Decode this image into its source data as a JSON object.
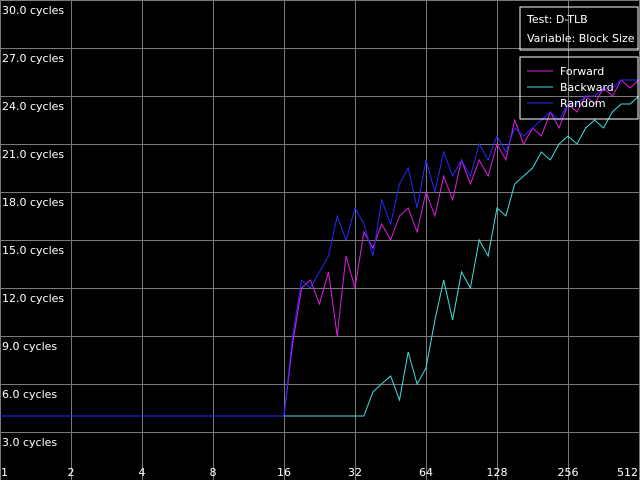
{
  "chart_data": {
    "type": "line",
    "title": "Test: D-TLB",
    "subtitle": "Variable: Block Size",
    "x": [
      1,
      2,
      4,
      8,
      16,
      17.4,
      19,
      20.7,
      22.6,
      24.7,
      26.9,
      29.3,
      32,
      34.9,
      38.1,
      41.5,
      45.3,
      49.4,
      53.8,
      58.7,
      64,
      69.8,
      76.1,
      83,
      90.5,
      98.7,
      107.6,
      117.4,
      128,
      139.6,
      152.2,
      166,
      181,
      197.4,
      215.3,
      234.8,
      256,
      279.2,
      304.4,
      332,
      362,
      394.8,
      430.5,
      469.5,
      512
    ],
    "series": [
      {
        "name": "Forward",
        "color": "#e020e0",
        "values": [
          4,
          4,
          4,
          4,
          4,
          8.5,
          12,
          12.5,
          11,
          13,
          9,
          14,
          12,
          15.5,
          14.5,
          16,
          15,
          16.5,
          17,
          15.5,
          18,
          16.5,
          19,
          17.5,
          20,
          18.5,
          20,
          19,
          21,
          20,
          22.5,
          21,
          22,
          21.5,
          23,
          22,
          23.5,
          23,
          24,
          23.5,
          24.5,
          24,
          25,
          24.5,
          25
        ]
      },
      {
        "name": "Backward",
        "color": "#40e0e0",
        "values": [
          4,
          4,
          4,
          4,
          4,
          4,
          4,
          4,
          4,
          4,
          4,
          4,
          4,
          4,
          5.5,
          6,
          6.5,
          5,
          8,
          6,
          7,
          10,
          12.5,
          10,
          13,
          12,
          15,
          14,
          17,
          16.5,
          18.5,
          19,
          19.5,
          20.5,
          20,
          21,
          21.5,
          21,
          22,
          22.5,
          22,
          23,
          23.5,
          23.5,
          24
        ]
      },
      {
        "name": "Random",
        "color": "#2828ff",
        "values": [
          4,
          4,
          4,
          4,
          4,
          9,
          12.5,
          12,
          13,
          14,
          16.5,
          15,
          17,
          16,
          14,
          17.5,
          16,
          18.5,
          19.5,
          17,
          20,
          18,
          20.5,
          19,
          20,
          19,
          21,
          20,
          21.5,
          20.5,
          22,
          21.5,
          22,
          22.5,
          23,
          22.5,
          23.5,
          23.5,
          24,
          24,
          24.5,
          24.5,
          25,
          25,
          25
        ]
      }
    ],
    "xscale": "log",
    "xlim": [
      1,
      512
    ],
    "xticks": [
      1,
      2,
      4,
      8,
      16,
      32,
      64,
      128,
      256,
      512
    ],
    "ylim": [
      0,
      30
    ],
    "yticks": [
      {
        "value": 3,
        "label": "3.0 cycles"
      },
      {
        "value": 6,
        "label": "6.0 cycles"
      },
      {
        "value": 9,
        "label": "9.0 cycles"
      },
      {
        "value": 12,
        "label": "12.0 cycles"
      },
      {
        "value": 15,
        "label": "15.0 cycles"
      },
      {
        "value": 18,
        "label": "18.0 cycles"
      },
      {
        "value": 21,
        "label": "21.0 cycles"
      },
      {
        "value": 24,
        "label": "24.0 cycles"
      },
      {
        "value": 27,
        "label": "27.0 cycles"
      },
      {
        "value": 30,
        "label": "30.0 cycles"
      }
    ],
    "grid": true,
    "legend": "top-right"
  }
}
